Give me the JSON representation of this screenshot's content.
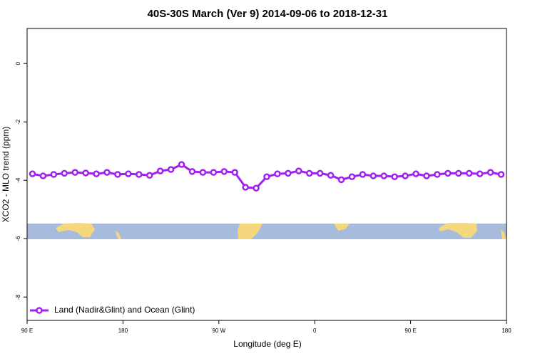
{
  "chart_data": {
    "type": "line",
    "title": "40S-30S March (Ver 9)   2014-09-06 to 2018-12-31",
    "x_label": "Longitude (deg E)",
    "y_label": "XCO2 - MLO trend (ppm)",
    "xlim": [
      90,
      540
    ],
    "xticks": [
      {
        "value": 90,
        "label": "90 E"
      },
      {
        "value": 180,
        "label": "180"
      },
      {
        "value": 270,
        "label": "90 W"
      },
      {
        "value": 360,
        "label": "0"
      },
      {
        "value": 450,
        "label": "90 E"
      },
      {
        "value": 540,
        "label": "180"
      }
    ],
    "ylim": [
      -8.8,
      1.2
    ],
    "yticks": [
      0,
      -2,
      -4,
      -6,
      -8
    ],
    "grid": false,
    "legend": "bottom-left",
    "x": [
      95,
      105,
      115,
      125,
      135,
      145,
      155,
      165,
      175,
      185,
      195,
      205,
      215,
      225,
      235,
      245,
      255,
      265,
      275,
      285,
      295,
      305,
      315,
      325,
      335,
      345,
      355,
      365,
      375,
      385,
      395,
      405,
      415,
      425,
      435,
      445,
      455,
      465,
      475,
      485,
      495,
      505,
      515,
      525,
      535
    ],
    "series": [
      {
        "name": "Land (Nadir&Glint) and Ocean (Glint)",
        "color": "#a020f0",
        "values": [
          -3.78,
          -3.85,
          -3.8,
          -3.76,
          -3.73,
          -3.75,
          -3.78,
          -3.73,
          -3.8,
          -3.78,
          -3.8,
          -3.83,
          -3.68,
          -3.63,
          -3.46,
          -3.7,
          -3.73,
          -3.73,
          -3.7,
          -3.73,
          -4.24,
          -4.27,
          -3.88,
          -3.78,
          -3.76,
          -3.68,
          -3.76,
          -3.76,
          -3.83,
          -3.98,
          -3.88,
          -3.8,
          -3.85,
          -3.85,
          -3.88,
          -3.85,
          -3.78,
          -3.85,
          -3.8,
          -3.76,
          -3.76,
          -3.76,
          -3.78,
          -3.73,
          -3.8
        ]
      }
    ]
  }
}
